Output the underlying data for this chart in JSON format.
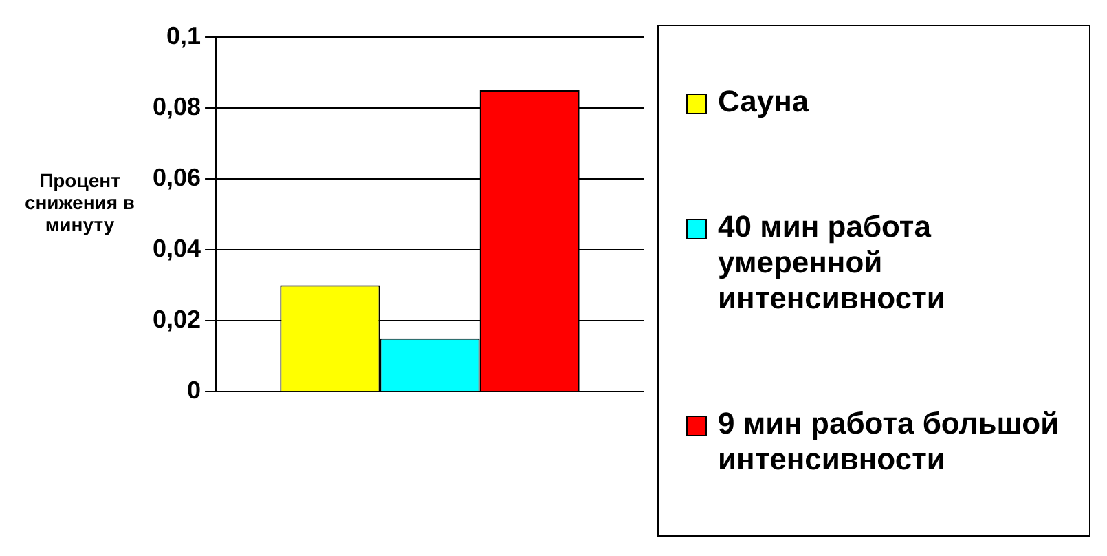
{
  "chart_data": {
    "type": "bar",
    "ylabel": "Процент снижения в минуту",
    "categories": [
      null
    ],
    "series": [
      {
        "name": "Сауна",
        "color": "#ffff00",
        "values": [
          0.03
        ]
      },
      {
        "name": "40 мин работа умеренной интенсивности",
        "color": "#00ffff",
        "values": [
          0.015
        ]
      },
      {
        "name": "9 мин работа большой интенсивности",
        "color": "#ff0000",
        "values": [
          0.085
        ]
      }
    ],
    "ylim": [
      0,
      0.1
    ],
    "yticks": [
      {
        "value": 0,
        "label": "0"
      },
      {
        "value": 0.02,
        "label": "0,02"
      },
      {
        "value": 0.04,
        "label": "0,04"
      },
      {
        "value": 0.06,
        "label": "0,06"
      },
      {
        "value": 0.08,
        "label": "0,08"
      },
      {
        "value": 0.1,
        "label": "0,1"
      }
    ],
    "grid": "y",
    "legend": "right"
  }
}
